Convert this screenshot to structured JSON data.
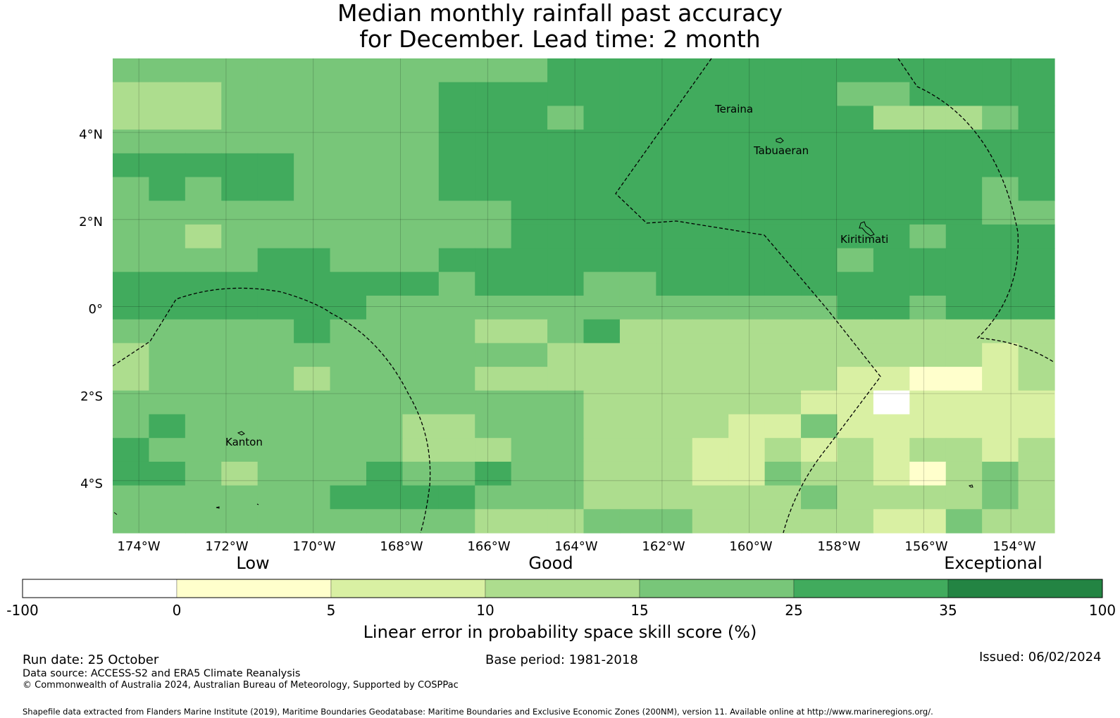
{
  "title": {
    "line1": "Median monthly rainfall past accuracy",
    "line2": "for December. Lead time: 2 month"
  },
  "map": {
    "lon_range": [
      -174.6,
      -153.0
    ],
    "lat_range": [
      -5.2,
      5.7
    ],
    "lat_labels": [
      "4°N",
      "2°N",
      "0°",
      "2°S",
      "4°S"
    ],
    "lat_values": [
      4,
      2,
      0,
      -2,
      -4
    ],
    "lon_labels": [
      "174°W",
      "172°W",
      "170°W",
      "168°W",
      "166°W",
      "164°W",
      "162°W",
      "160°W",
      "158°W",
      "156°W",
      "154°W"
    ],
    "lon_values": [
      -174,
      -172,
      -170,
      -168,
      -166,
      -164,
      -162,
      -160,
      -158,
      -156,
      -154
    ],
    "grid_cols": 26,
    "grid_rows": 20,
    "grid_classes": [
      "44444444444455555555555555",
      "33344444455555555555445555",
      "33344444455545555555533345",
      "44444444455555555555555555",
      "55555444455555555555555555",
      "45455444455555555555555545",
      "44444444444555555555555544",
      "44344444444555555555554555",
      "44445544455555555555455555",
      "55555555545554455555555555",
      "55555554444444444444554555",
      "44444544443345333333333333",
      "34444444444433333333333323",
      "34444344443333333333221123",
      "44444444444443333332202222",
      "45444444334443333224222222",
      "54444444333443332232323323",
      "55434445445443332243321343",
      "44444455554443333334333343",
      "44444444443334443333322433"
    ],
    "places": {
      "teraina": "Teraina",
      "tabuaeran": "Tabuaeran",
      "kiritimati": "Kiritimati",
      "kanton": "Kanton"
    }
  },
  "colorbar": {
    "category_labels": [
      "Low",
      "Good",
      "Exceptional"
    ],
    "tick_labels": [
      "-100",
      "0",
      "5",
      "10",
      "15",
      "25",
      "35",
      "100"
    ],
    "colors": [
      "#ffffff",
      "#ffffcc",
      "#d9f0a3",
      "#addd8e",
      "#78c679",
      "#41ab5d",
      "#238443"
    ],
    "title": "Linear error in probability space skill score (%)"
  },
  "footer": {
    "run_date": "Run date: 25 October",
    "base_period": "Base period: 1981-2018",
    "issued": "Issued: 06/02/2024",
    "data_source": "Data source: ACCESS-S2 and ERA5 Climate Reanalysis",
    "copyright": "© Commonwealth of Australia 2024, Australian Bureau of Meteorology, Supported by COSPPac",
    "shapefile": "Shapefile data extracted from Flanders Marine Institute (2019), Maritime Boundaries Geodatabase: Maritime Boundaries and Exclusive Economic Zones (200NM), version 11. Available online at http://www.marineregions.org/."
  }
}
